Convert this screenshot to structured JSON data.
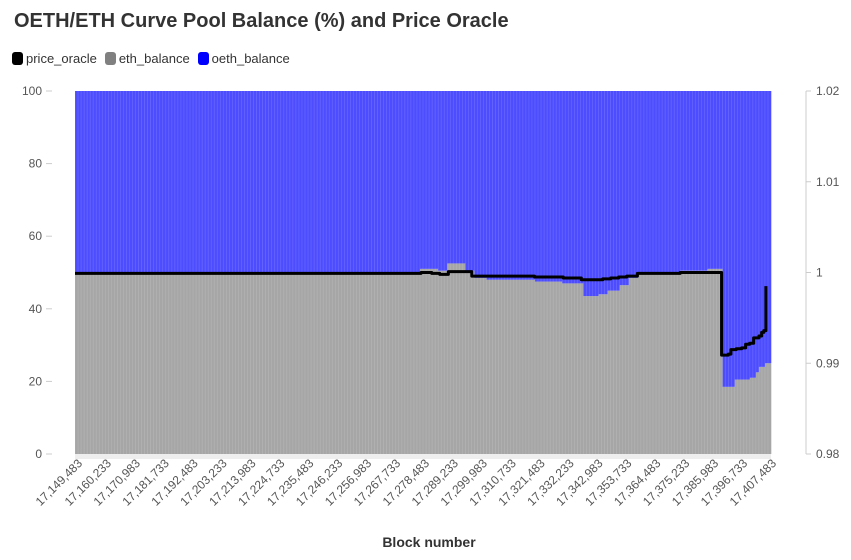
{
  "chart_data": {
    "type": "bar",
    "title": "OETH/ETH Curve Pool Balance (%) and Price Oracle",
    "xlabel": "Block number",
    "ylabel": "",
    "ylim": [
      0,
      100
    ],
    "y_ticks": [
      "0",
      "20",
      "40",
      "60",
      "80",
      "100"
    ],
    "y2lim": [
      0.98,
      1.02
    ],
    "y2_ticks": [
      "0.98",
      "0.99",
      "1",
      "1.01",
      "1.02"
    ],
    "stacked": true,
    "x_tick_labels": [
      "17,149,483",
      "17,160,233",
      "17,170,983",
      "17,181,733",
      "17,192,483",
      "17,203,233",
      "17,213,983",
      "17,224,733",
      "17,235,483",
      "17,246,233",
      "17,256,983",
      "17,267,733",
      "17,278,483",
      "17,289,233",
      "17,299,983",
      "17,310,733",
      "17,321,483",
      "17,332,233",
      "17,342,983",
      "17,353,733",
      "17,364,483",
      "17,375,233",
      "17,385,983",
      "17,396,733",
      "17,407,483"
    ],
    "x_range": [
      17149483,
      17410000
    ],
    "legend": [
      "price_oracle",
      "eth_balance",
      "oeth_balance"
    ],
    "legend_position": "top-left",
    "series": [
      {
        "name": "eth_balance",
        "axis": "left",
        "color": "#a6a6a6",
        "segments": [
          [
            17149483,
            50
          ],
          [
            17278483,
            51
          ],
          [
            17285000,
            50.5
          ],
          [
            17289233,
            52.5
          ],
          [
            17296000,
            50.5
          ],
          [
            17298500,
            48.5
          ],
          [
            17304000,
            48
          ],
          [
            17321483,
            47.5
          ],
          [
            17332233,
            47
          ],
          [
            17340000,
            43.5
          ],
          [
            17345000,
            44
          ],
          [
            17349000,
            45
          ],
          [
            17353000,
            46.5
          ],
          [
            17357000,
            48.5
          ],
          [
            17360000,
            50
          ],
          [
            17376000,
            50.5
          ],
          [
            17385983,
            51
          ],
          [
            17392000,
            18.5
          ],
          [
            17396000,
            20.5
          ],
          [
            17402000,
            21
          ],
          [
            17404000,
            22.5
          ],
          [
            17406000,
            24
          ],
          [
            17408000,
            25
          ]
        ]
      },
      {
        "name": "oeth_balance",
        "axis": "left",
        "color": "#4d4dff",
        "note": "fills remainder to 100%"
      },
      {
        "name": "price_oracle",
        "axis": "right",
        "color": "#000000",
        "points": [
          [
            17149483,
            0.9999
          ],
          [
            17278483,
            0.9999
          ],
          [
            17279000,
            1.0
          ],
          [
            17283000,
            0.9999
          ],
          [
            17286000,
            0.9998
          ],
          [
            17289233,
            1.0001
          ],
          [
            17296000,
            1.0001
          ],
          [
            17298000,
            0.9996
          ],
          [
            17310733,
            0.9996
          ],
          [
            17321483,
            0.9995
          ],
          [
            17332233,
            0.9994
          ],
          [
            17339000,
            0.9992
          ],
          [
            17343000,
            0.9992
          ],
          [
            17347000,
            0.9993
          ],
          [
            17350000,
            0.9994
          ],
          [
            17353000,
            0.9995
          ],
          [
            17356000,
            0.9996
          ],
          [
            17360000,
            0.9999
          ],
          [
            17364483,
            0.9999
          ],
          [
            17376000,
            1.0
          ],
          [
            17390500,
            1.0
          ],
          [
            17391500,
            0.9909
          ],
          [
            17394000,
            0.991
          ],
          [
            17395000,
            0.9915
          ],
          [
            17397000,
            0.9916
          ],
          [
            17399000,
            0.9917
          ],
          [
            17400500,
            0.9921
          ],
          [
            17402000,
            0.9922
          ],
          [
            17403500,
            0.9928
          ],
          [
            17405500,
            0.993
          ],
          [
            17406500,
            0.9934
          ],
          [
            17407300,
            0.9936
          ],
          [
            17408100,
            0.9985
          ]
        ]
      }
    ]
  }
}
